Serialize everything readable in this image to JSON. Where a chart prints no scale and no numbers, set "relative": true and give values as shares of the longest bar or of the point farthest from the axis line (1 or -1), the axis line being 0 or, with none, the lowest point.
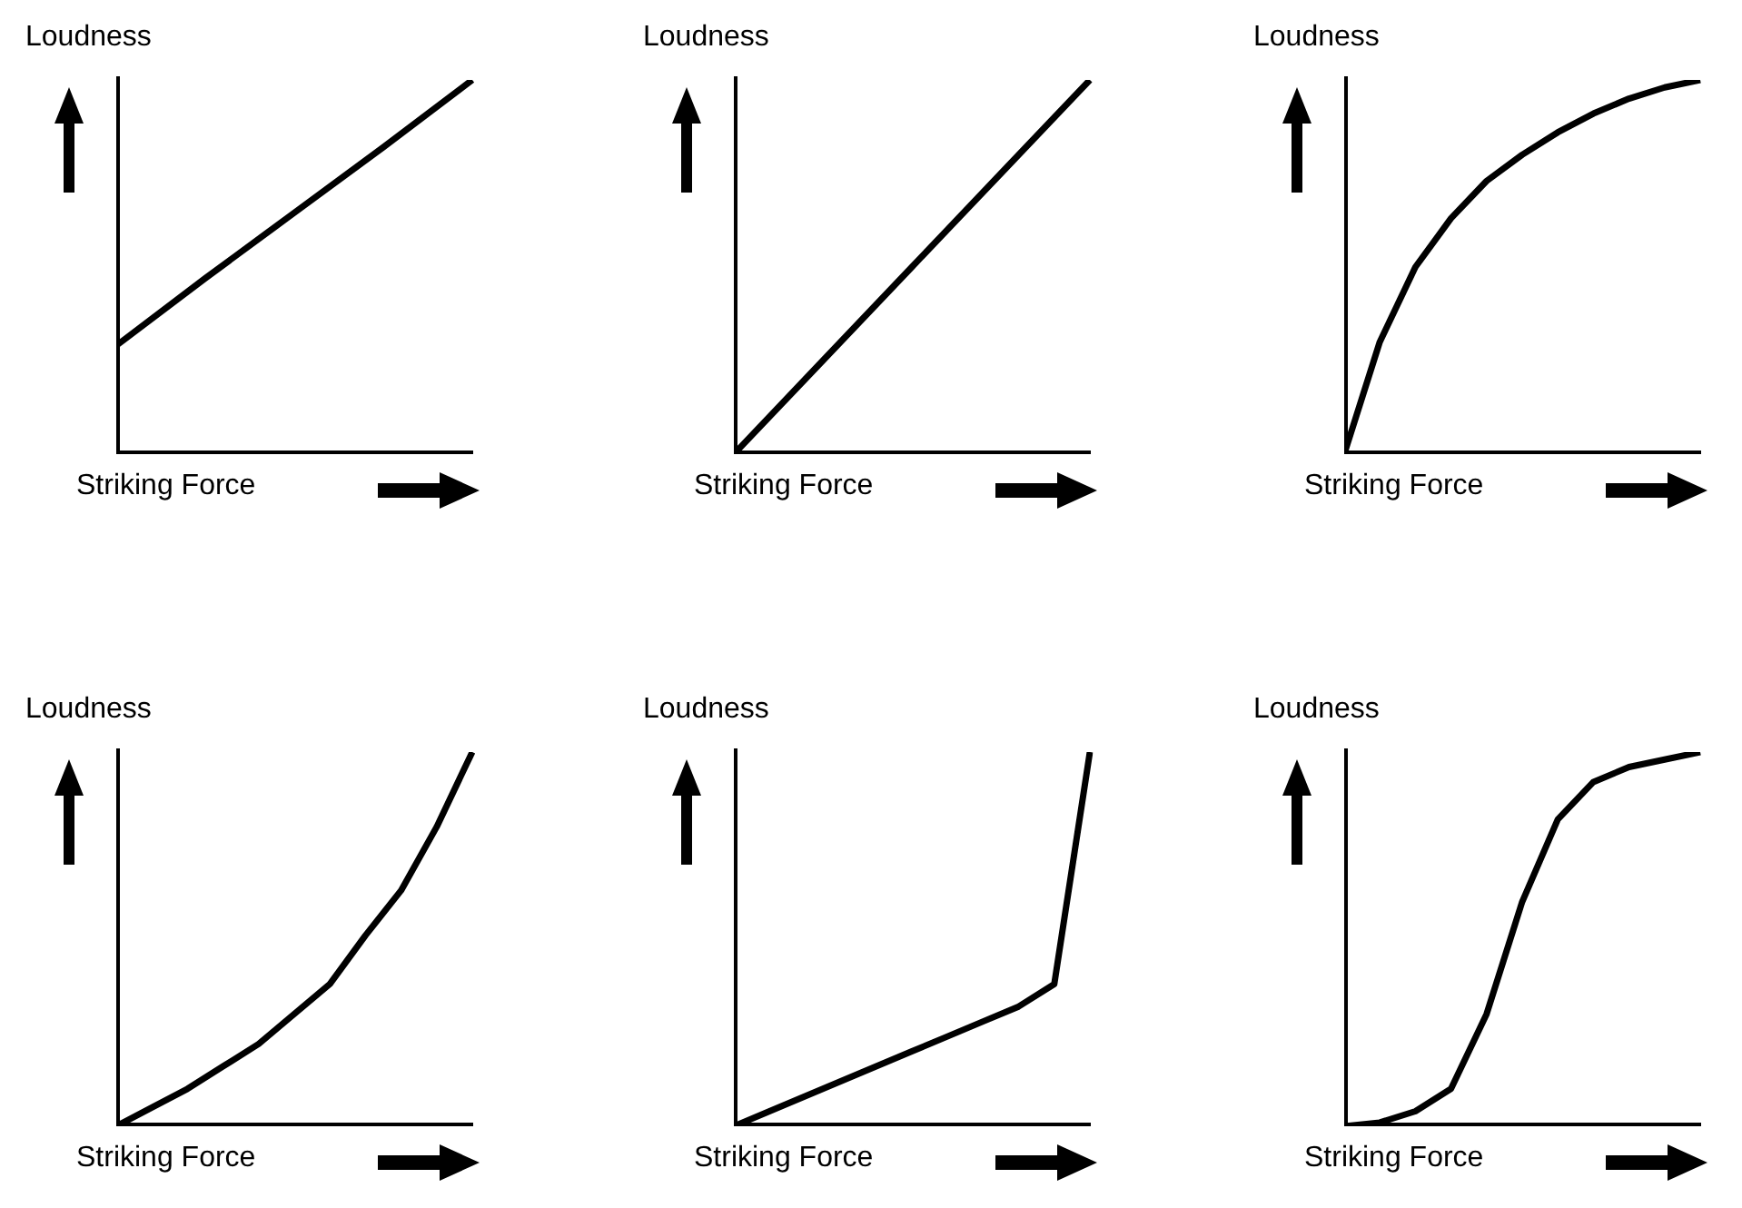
{
  "chart_data": [
    {
      "type": "line",
      "relative": true,
      "xlabel": "Striking Force",
      "ylabel": "Loudness",
      "categories": [
        null,
        null,
        null,
        null,
        null
      ],
      "series": [
        {
          "color": "#000000",
          "values": [
            0.29,
            0.47,
            0.645,
            0.82,
            1
          ]
        }
      ]
    },
    {
      "type": "line",
      "relative": true,
      "xlabel": "Striking Force",
      "ylabel": "Loudness",
      "categories": [
        null,
        null,
        null,
        null,
        null
      ],
      "series": [
        {
          "color": "#000000",
          "values": [
            0,
            0.25,
            0.5,
            0.75,
            1
          ]
        }
      ]
    },
    {
      "type": "line",
      "relative": true,
      "xlabel": "Striking Force",
      "ylabel": "Loudness",
      "categories": [
        null,
        null,
        null,
        null,
        null,
        null,
        null,
        null,
        null,
        null,
        null
      ],
      "series": [
        {
          "color": "#000000",
          "values": [
            0,
            0.3,
            0.5,
            0.63,
            0.73,
            0.8,
            0.86,
            0.91,
            0.95,
            0.98,
            1
          ]
        }
      ]
    },
    {
      "type": "line",
      "relative": true,
      "xlabel": "Striking Force",
      "ylabel": "Loudness",
      "categories": [
        null,
        null,
        null,
        null,
        null,
        null,
        null,
        null,
        null,
        null,
        null
      ],
      "series": [
        {
          "color": "#000000",
          "values": [
            0,
            0.05,
            0.1,
            0.16,
            0.22,
            0.3,
            0.38,
            0.51,
            0.63,
            0.8,
            1
          ]
        }
      ]
    },
    {
      "type": "line",
      "relative": true,
      "xlabel": "Striking Force",
      "ylabel": "Loudness",
      "categories": [
        null,
        null,
        null,
        null,
        null,
        null,
        null,
        null,
        null,
        null,
        null
      ],
      "series": [
        {
          "color": "#000000",
          "values": [
            0,
            0.04,
            0.08,
            0.12,
            0.16,
            0.2,
            0.24,
            0.28,
            0.32,
            0.38,
            1
          ]
        }
      ]
    },
    {
      "type": "line",
      "relative": true,
      "xlabel": "Striking Force",
      "ylabel": "Loudness",
      "categories": [
        null,
        null,
        null,
        null,
        null,
        null,
        null,
        null,
        null,
        null,
        null
      ],
      "series": [
        {
          "color": "#000000",
          "values": [
            0,
            0.01,
            0.04,
            0.1,
            0.3,
            0.6,
            0.82,
            0.92,
            0.96,
            0.98,
            1
          ]
        }
      ]
    }
  ]
}
